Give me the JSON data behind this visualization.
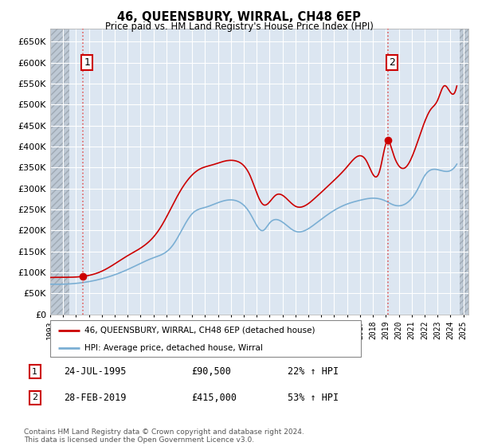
{
  "title": "46, QUEENSBURY, WIRRAL, CH48 6EP",
  "subtitle": "Price paid vs. HM Land Registry's House Price Index (HPI)",
  "ylim": [
    0,
    680000
  ],
  "yticks": [
    0,
    50000,
    100000,
    150000,
    200000,
    250000,
    300000,
    350000,
    400000,
    450000,
    500000,
    550000,
    600000,
    650000
  ],
  "ytick_labels": [
    "£0",
    "£50K",
    "£100K",
    "£150K",
    "£200K",
    "£250K",
    "£300K",
    "£350K",
    "£400K",
    "£450K",
    "£500K",
    "£550K",
    "£600K",
    "£650K"
  ],
  "xmin": 1993.0,
  "xmax": 2025.4,
  "data_xmin": 1994.5,
  "data_xmax": 2024.75,
  "sale1_date": 1995.56,
  "sale1_price": 90500,
  "sale1_label": "1",
  "sale1_info": "24-JUL-1995",
  "sale1_price_str": "£90,500",
  "sale1_hpi_str": "22% ↑ HPI",
  "sale2_date": 2019.16,
  "sale2_price": 415000,
  "sale2_label": "2",
  "sale2_info": "28-FEB-2019",
  "sale2_price_str": "£415,000",
  "sale2_hpi_str": "53% ↑ HPI",
  "red_line_color": "#cc0000",
  "blue_line_color": "#7bafd4",
  "background_color": "#ffffff",
  "plot_bg_color": "#dce6f1",
  "grid_color": "#ffffff",
  "hatch_color": "#bdc8d4",
  "legend_label1": "46, QUEENSBURY, WIRRAL, CH48 6EP (detached house)",
  "legend_label2": "HPI: Average price, detached house, Wirral",
  "footnote": "Contains HM Land Registry data © Crown copyright and database right 2024.\nThis data is licensed under the Open Government Licence v3.0."
}
